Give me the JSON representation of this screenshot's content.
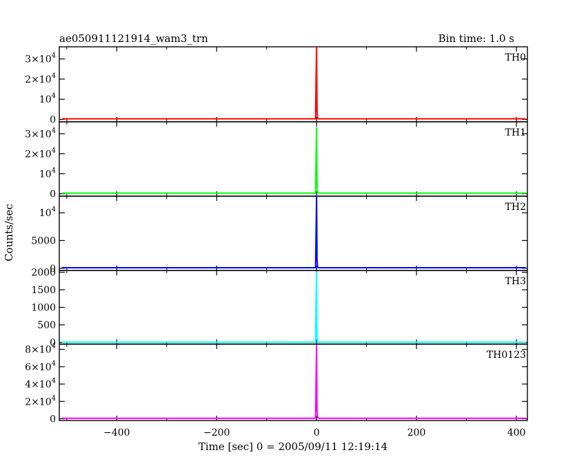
{
  "header": {
    "title": "ae050911121914_wam3_trn",
    "bin_time": "Bin time: 1.0 s"
  },
  "chart_data": {
    "type": "line",
    "title": "ae050911121914_wam3_trn",
    "subtitle": "Bin time: 1.0 s",
    "xlabel": "Time [sec] 0 = 2005/09/11 12:19:14",
    "ylabel": "Counts/sec",
    "xlim": [
      -515,
      422
    ],
    "x_ticks": [
      -400,
      -200,
      0,
      200,
      400
    ],
    "x_tick_labels": [
      "−400",
      "−200",
      "0",
      "200",
      "400"
    ],
    "grid": false,
    "panels": [
      {
        "label": "TH0",
        "color": "#ff0000",
        "ylim": [
          -1200,
          36000
        ],
        "y_ticks": [
          0,
          10000,
          20000,
          30000
        ],
        "y_tick_labels": [
          "0",
          "10^4",
          "2×10^4",
          "3×10^4"
        ],
        "baseline": 300,
        "spike": [
          {
            "t": -2,
            "y": 300
          },
          {
            "t": -1,
            "y": 22000
          },
          {
            "t": 0,
            "y": 36000
          },
          {
            "t": 1,
            "y": 4000
          },
          {
            "t": 2,
            "y": 800
          },
          {
            "t": 3,
            "y": 300
          }
        ]
      },
      {
        "label": "TH1",
        "color": "#00ff00",
        "ylim": [
          -1200,
          36000
        ],
        "y_ticks": [
          0,
          10000,
          20000,
          30000
        ],
        "y_tick_labels": [
          "0",
          "10^4",
          "2×10^4",
          "3×10^4"
        ],
        "baseline": 300,
        "spike": [
          {
            "t": -2,
            "y": 300
          },
          {
            "t": -1,
            "y": 20000
          },
          {
            "t": 0,
            "y": 33000
          },
          {
            "t": 1,
            "y": 3500
          },
          {
            "t": 2,
            "y": 700
          },
          {
            "t": 3,
            "y": 300
          }
        ]
      },
      {
        "label": "TH2",
        "color": "#0000ff",
        "ylim": [
          -400,
          13000
        ],
        "y_ticks": [
          0,
          5000,
          10000
        ],
        "y_tick_labels": [
          "0",
          "5000",
          "10^4"
        ],
        "baseline": 100,
        "spike": [
          {
            "t": -2,
            "y": 100
          },
          {
            "t": -1,
            "y": 7000
          },
          {
            "t": 0,
            "y": 13000
          },
          {
            "t": 1,
            "y": 1500
          },
          {
            "t": 2,
            "y": 300
          },
          {
            "t": 3,
            "y": 100
          }
        ]
      },
      {
        "label": "TH3",
        "color": "#00ffff",
        "ylim": [
          -50,
          2050
        ],
        "y_ticks": [
          0,
          500,
          1000,
          1500,
          2000
        ],
        "y_tick_labels": [
          "0",
          "500",
          "1000",
          "1500",
          "2000"
        ],
        "baseline": 5,
        "spike": [
          {
            "t": -2,
            "y": 5
          },
          {
            "t": -1,
            "y": 1300
          },
          {
            "t": 0,
            "y": 2000
          },
          {
            "t": 1,
            "y": 200
          },
          {
            "t": 2,
            "y": 40
          },
          {
            "t": 3,
            "y": 5
          }
        ]
      },
      {
        "label": "TH0123",
        "color": "#ff00ff",
        "ylim": [
          -2000,
          86000
        ],
        "y_ticks": [
          0,
          20000,
          40000,
          60000,
          80000
        ],
        "y_tick_labels": [
          "0",
          "2×10^4",
          "4×10^4",
          "6×10^4",
          "8×10^4"
        ],
        "baseline": 600,
        "spike": [
          {
            "t": -2,
            "y": 600
          },
          {
            "t": -1,
            "y": 50000
          },
          {
            "t": 0,
            "y": 84000
          },
          {
            "t": 1,
            "y": 9000
          },
          {
            "t": 2,
            "y": 1800
          },
          {
            "t": 3,
            "y": 600
          }
        ]
      }
    ]
  }
}
